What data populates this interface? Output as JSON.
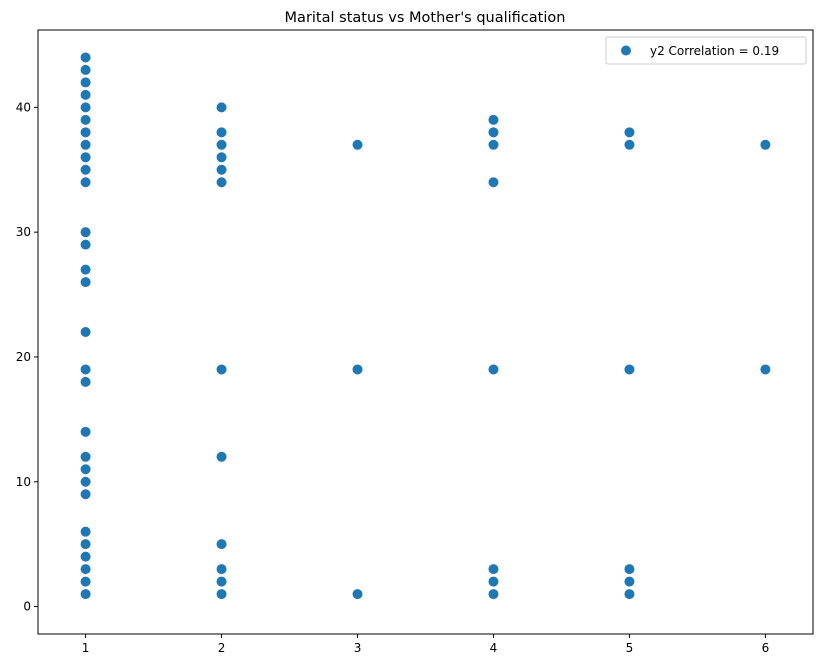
{
  "chart_data": {
    "type": "scatter",
    "title": "Marital status vs Mother's qualification",
    "xlabel": "",
    "ylabel": "",
    "xlim": [
      0.65,
      6.35
    ],
    "ylim": [
      -2.2,
      46.2
    ],
    "x_ticks": [
      1,
      2,
      3,
      4,
      5,
      6
    ],
    "y_ticks": [
      0,
      10,
      20,
      30,
      40
    ],
    "grid": false,
    "legend_position": "top-right",
    "series": [
      {
        "name": "y2 Correlation = 0.19",
        "color": "#1f77b4",
        "points": [
          [
            1,
            1
          ],
          [
            1,
            2
          ],
          [
            1,
            3
          ],
          [
            1,
            4
          ],
          [
            1,
            5
          ],
          [
            1,
            6
          ],
          [
            1,
            9
          ],
          [
            1,
            10
          ],
          [
            1,
            11
          ],
          [
            1,
            12
          ],
          [
            1,
            14
          ],
          [
            1,
            18
          ],
          [
            1,
            19
          ],
          [
            1,
            22
          ],
          [
            1,
            26
          ],
          [
            1,
            27
          ],
          [
            1,
            29
          ],
          [
            1,
            30
          ],
          [
            1,
            34
          ],
          [
            1,
            35
          ],
          [
            1,
            36
          ],
          [
            1,
            37
          ],
          [
            1,
            38
          ],
          [
            1,
            39
          ],
          [
            1,
            40
          ],
          [
            1,
            41
          ],
          [
            1,
            42
          ],
          [
            1,
            43
          ],
          [
            1,
            44
          ],
          [
            2,
            1
          ],
          [
            2,
            2
          ],
          [
            2,
            3
          ],
          [
            2,
            5
          ],
          [
            2,
            12
          ],
          [
            2,
            19
          ],
          [
            2,
            34
          ],
          [
            2,
            35
          ],
          [
            2,
            36
          ],
          [
            2,
            37
          ],
          [
            2,
            38
          ],
          [
            2,
            40
          ],
          [
            3,
            1
          ],
          [
            3,
            19
          ],
          [
            3,
            37
          ],
          [
            4,
            1
          ],
          [
            4,
            2
          ],
          [
            4,
            3
          ],
          [
            4,
            19
          ],
          [
            4,
            34
          ],
          [
            4,
            37
          ],
          [
            4,
            38
          ],
          [
            4,
            39
          ],
          [
            5,
            1
          ],
          [
            5,
            2
          ],
          [
            5,
            3
          ],
          [
            5,
            19
          ],
          [
            5,
            37
          ],
          [
            5,
            38
          ],
          [
            6,
            19
          ],
          [
            6,
            37
          ]
        ]
      }
    ]
  }
}
